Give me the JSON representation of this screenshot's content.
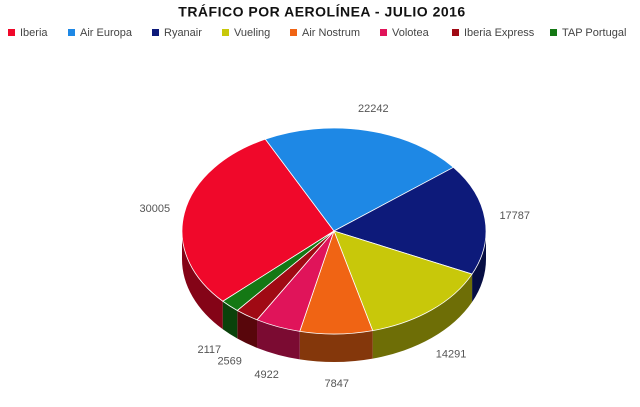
{
  "chart_data": {
    "type": "pie3d",
    "title": "TRÁFICO POR AEROLÍNEA - JULIO 2016",
    "categories": [
      "Iberia",
      "Air Europa",
      "Ryanair",
      "Vueling",
      "Air Nostrum",
      "Volotea",
      "Iberia Express",
      "TAP Portugal"
    ],
    "values": [
      30005,
      22242,
      17787,
      14291,
      7847,
      4922,
      2569,
      2117
    ],
    "colors": [
      "#f0082a",
      "#1e88e5",
      "#0d1a7a",
      "#c8c80a",
      "#f06414",
      "#e0145a",
      "#a00a14",
      "#147814"
    ],
    "legend": "top"
  }
}
